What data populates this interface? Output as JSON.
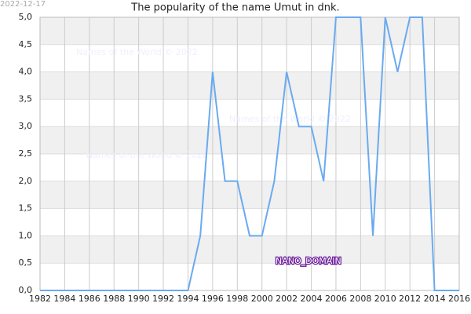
{
  "chart_data": {
    "type": "line",
    "title": "The popularity of the name Umut in dnk.",
    "date": "2022-12-17",
    "watermarks": [
      "Names of the World © 2022",
      "Names of the World © 2022",
      "Names of the World © 2022"
    ],
    "badge": "NANO_DOMAIN",
    "x": [
      1982,
      1983,
      1984,
      1985,
      1986,
      1987,
      1988,
      1989,
      1990,
      1991,
      1992,
      1993,
      1994,
      1995,
      1996,
      1997,
      1998,
      1999,
      2000,
      2001,
      2002,
      2003,
      2004,
      2005,
      2006,
      2007,
      2008,
      2009,
      2010,
      2011,
      2012,
      2013,
      2014,
      2015,
      2016
    ],
    "series": [
      {
        "name": "Umut",
        "color": "#6aaaf0",
        "values": [
          0,
          0,
          0,
          0,
          0,
          0,
          0,
          0,
          0,
          0,
          0,
          0,
          0,
          1,
          4,
          2,
          2,
          1,
          1,
          2,
          4,
          3,
          3,
          2,
          5,
          5,
          5,
          1,
          5,
          4,
          5,
          5,
          0,
          0,
          0
        ]
      }
    ],
    "xlim": [
      1982,
      2016
    ],
    "xticks": [
      1982,
      1984,
      1986,
      1988,
      1990,
      1992,
      1994,
      1996,
      1998,
      2000,
      2002,
      2004,
      2006,
      2008,
      2010,
      2012,
      2014,
      2016
    ],
    "ylim": [
      0,
      5
    ],
    "yticks": [
      {
        "value": 0,
        "label": "0,0"
      },
      {
        "value": 0.5,
        "label": "0,5"
      },
      {
        "value": 1,
        "label": "1,0"
      },
      {
        "value": 1.5,
        "label": "1,5"
      },
      {
        "value": 2,
        "label": "2,0"
      },
      {
        "value": 2.5,
        "label": "2,5"
      },
      {
        "value": 3,
        "label": "3,0"
      },
      {
        "value": 3.5,
        "label": "3,5"
      },
      {
        "value": 4,
        "label": "4,0"
      },
      {
        "value": 4.5,
        "label": "4,5"
      },
      {
        "value": 5,
        "label": "5,0"
      }
    ],
    "grid": true
  }
}
